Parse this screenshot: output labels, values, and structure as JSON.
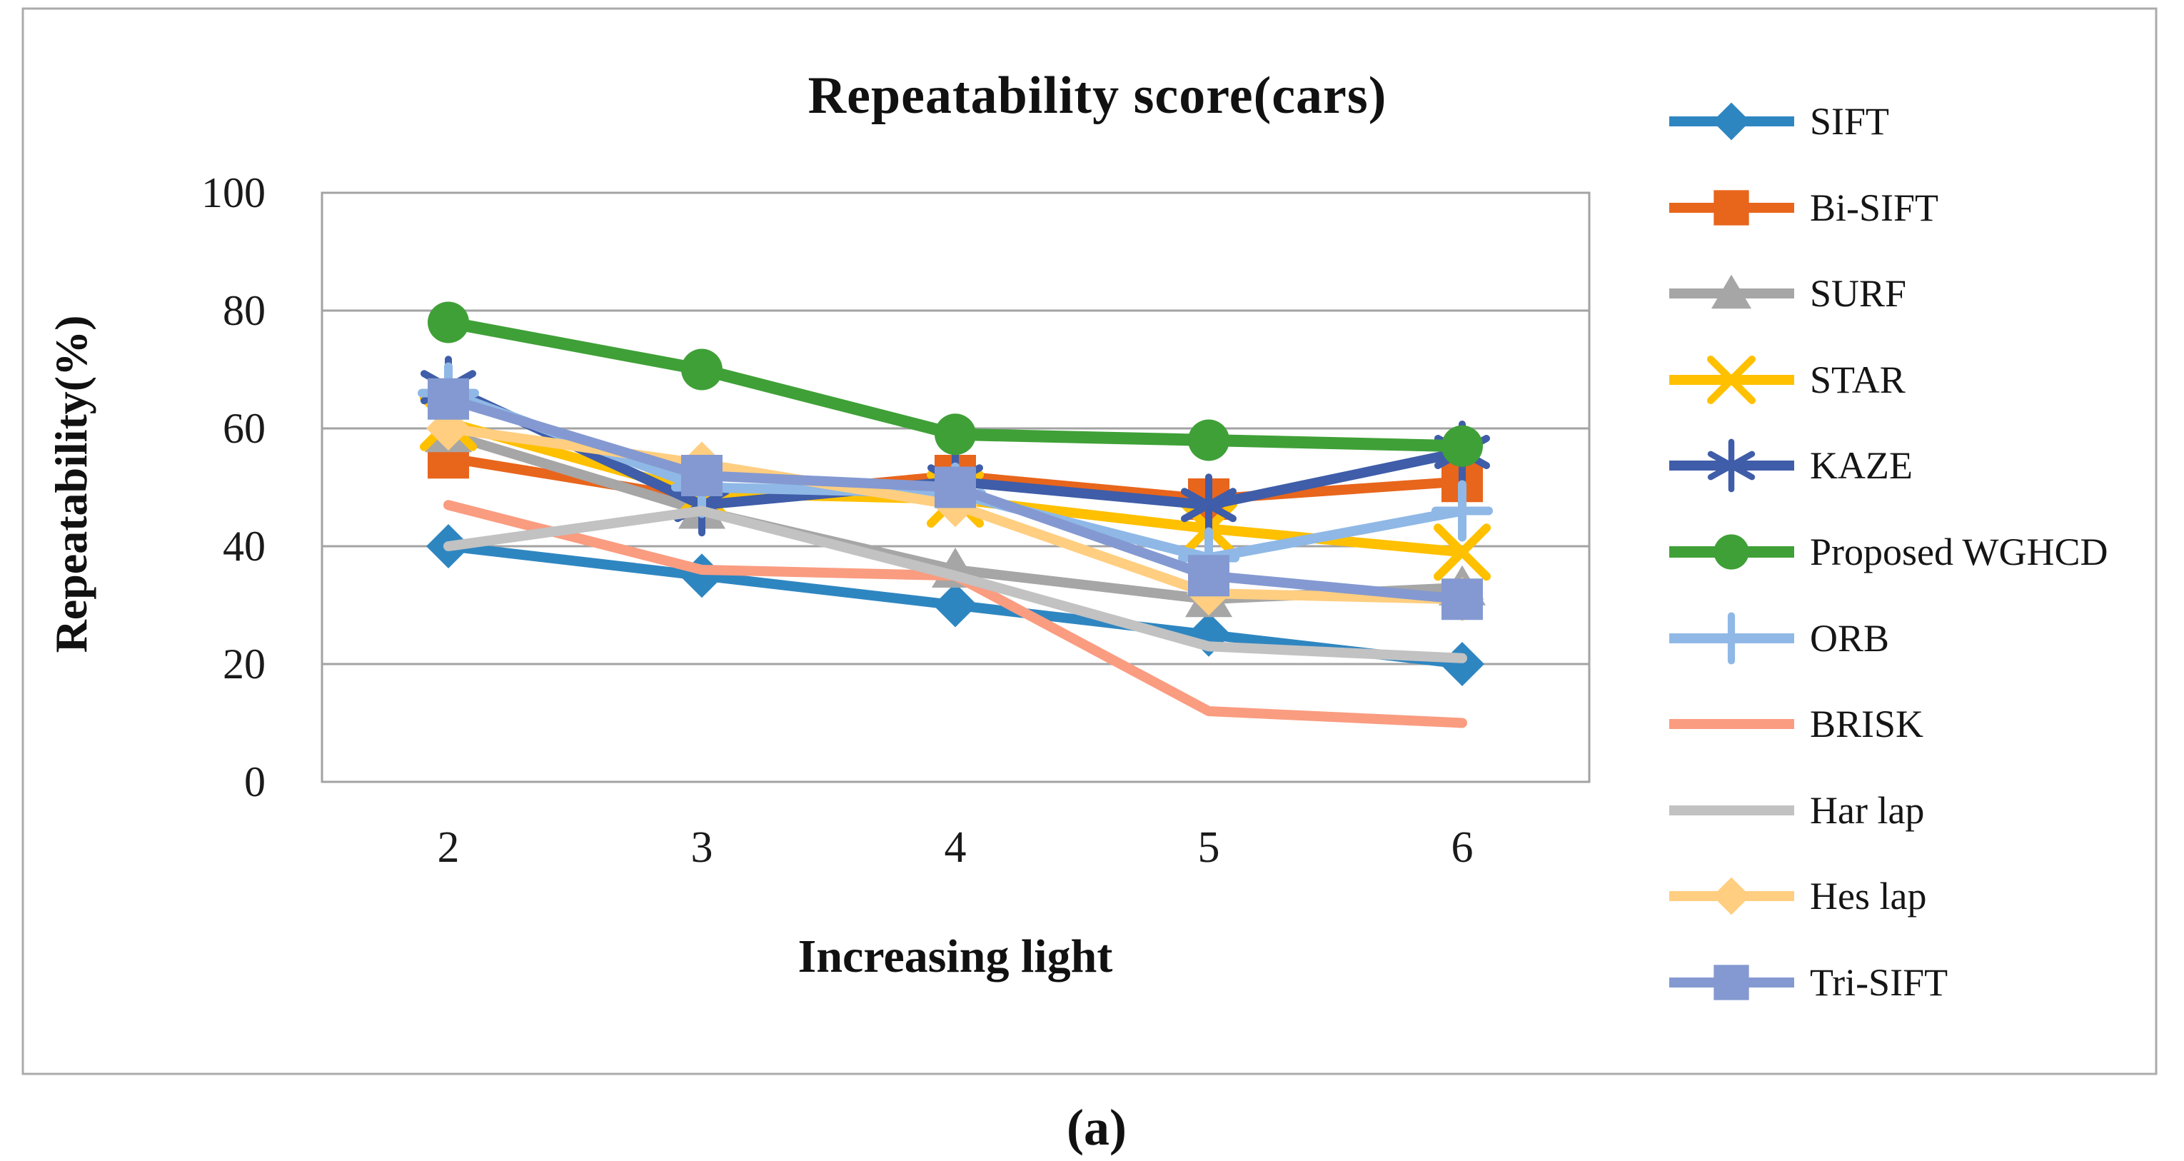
{
  "figure": {
    "caption": "(a)"
  },
  "chart_data": {
    "type": "line",
    "title": "Repeatability score(cars)",
    "xlabel": "Increasing light",
    "ylabel": "Repeatability(%)",
    "x_categories": [
      "2",
      "3",
      "4",
      "5",
      "6"
    ],
    "y_ticks": [
      100,
      80,
      60,
      40,
      20,
      0
    ],
    "ylim": [
      0,
      100
    ],
    "grid": "horizontal-major",
    "legend_position": "right",
    "axis_color": "#A3A3A3",
    "border_color": "#ABABAB",
    "series": [
      {
        "name": "SIFT",
        "color": "#2E86C1",
        "marker": "diamond",
        "values": [
          40,
          35,
          30,
          25,
          20
        ]
      },
      {
        "name": "Bi-SIFT",
        "color": "#E8651C",
        "marker": "square",
        "values": [
          55,
          48,
          52,
          48,
          51
        ]
      },
      {
        "name": "SURF",
        "color": "#A6A6A6",
        "marker": "triangle",
        "values": [
          59,
          46,
          36,
          31,
          33
        ]
      },
      {
        "name": "STAR",
        "color": "#FFC000",
        "marker": "x",
        "values": [
          61,
          49,
          48,
          43,
          39
        ]
      },
      {
        "name": "KAZE",
        "color": "#3F5DA8",
        "marker": "asterisk",
        "values": [
          67,
          47,
          51,
          47,
          56
        ]
      },
      {
        "name": "Proposed WGHCD",
        "color": "#3FA037",
        "marker": "circle",
        "values": [
          78,
          70,
          59,
          58,
          57
        ]
      },
      {
        "name": "ORB",
        "color": "#8FB8E6",
        "marker": "plus",
        "values": [
          66,
          50,
          49,
          38,
          46
        ]
      },
      {
        "name": "BRISK",
        "color": "#FA9C80",
        "marker": "none",
        "values": [
          47,
          36,
          35,
          12,
          10
        ]
      },
      {
        "name": "Har lap",
        "color": "#C2C2C2",
        "marker": "none",
        "values": [
          40,
          46,
          35,
          23,
          21
        ]
      },
      {
        "name": "Hes lap",
        "color": "#FFCE80",
        "marker": "diamond",
        "values": [
          60,
          54,
          47,
          32,
          31
        ]
      },
      {
        "name": "Tri-SIFT",
        "color": "#8499D1",
        "marker": "square",
        "values": [
          65,
          52,
          50,
          35,
          31
        ]
      }
    ]
  }
}
